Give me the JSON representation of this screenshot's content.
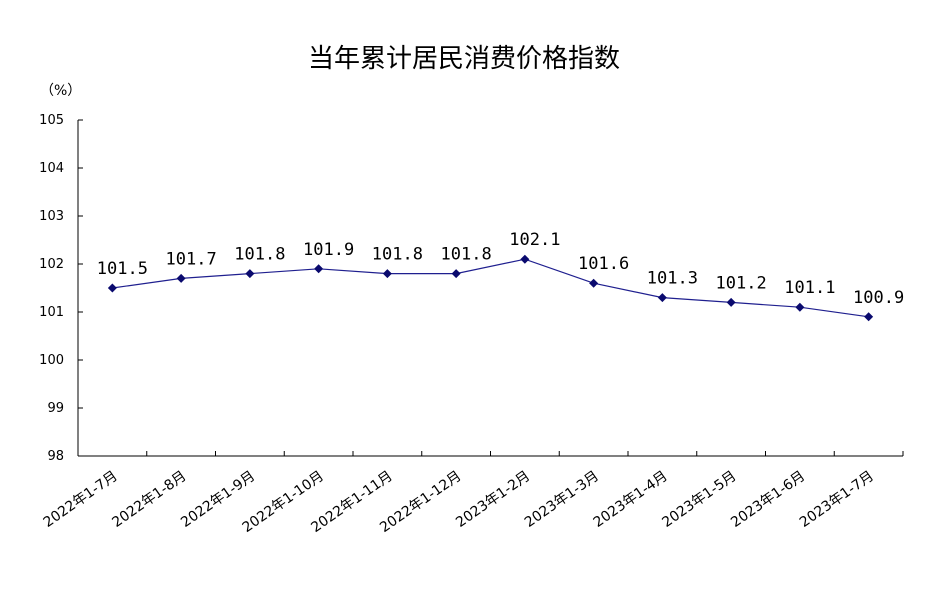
{
  "chart_data": {
    "type": "line",
    "title": "当年累计居民消费价格指数",
    "unit": "（%）",
    "categories": [
      "2022年1-7月",
      "2022年1-8月",
      "2022年1-9月",
      "2022年1-10月",
      "2022年1-11月",
      "2022年1-12月",
      "2023年1-2月",
      "2023年1-3月",
      "2023年1-4月",
      "2023年1-5月",
      "2023年1-6月",
      "2023年1-7月"
    ],
    "values": [
      101.5,
      101.7,
      101.8,
      101.9,
      101.8,
      101.8,
      102.1,
      101.6,
      101.3,
      101.2,
      101.1,
      100.9
    ],
    "value_labels": [
      "101.5",
      "101.7",
      "101.8",
      "101.9",
      "101.8",
      "101.8",
      "102.1",
      "101.6",
      "101.3",
      "101.2",
      "101.1",
      "100.9"
    ],
    "ylim": [
      98,
      105
    ],
    "yticks": [
      98,
      99,
      100,
      101,
      102,
      103,
      104,
      105
    ],
    "grid": false,
    "line_color": "#1f1f8f",
    "marker": "diamond"
  }
}
